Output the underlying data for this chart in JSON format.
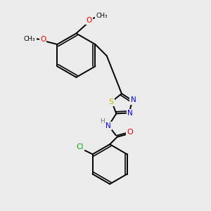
{
  "background_color": "#ebebeb",
  "bond_color": "#000000",
  "atom_colors": {
    "S": "#b8b800",
    "N": "#0000ee",
    "O": "#ee0000",
    "Cl": "#00aa00",
    "H": "#777777",
    "C": "#000000"
  },
  "figsize": [
    3.0,
    3.0
  ],
  "dpi": 100,
  "lw": 1.4,
  "fs": 7.0
}
